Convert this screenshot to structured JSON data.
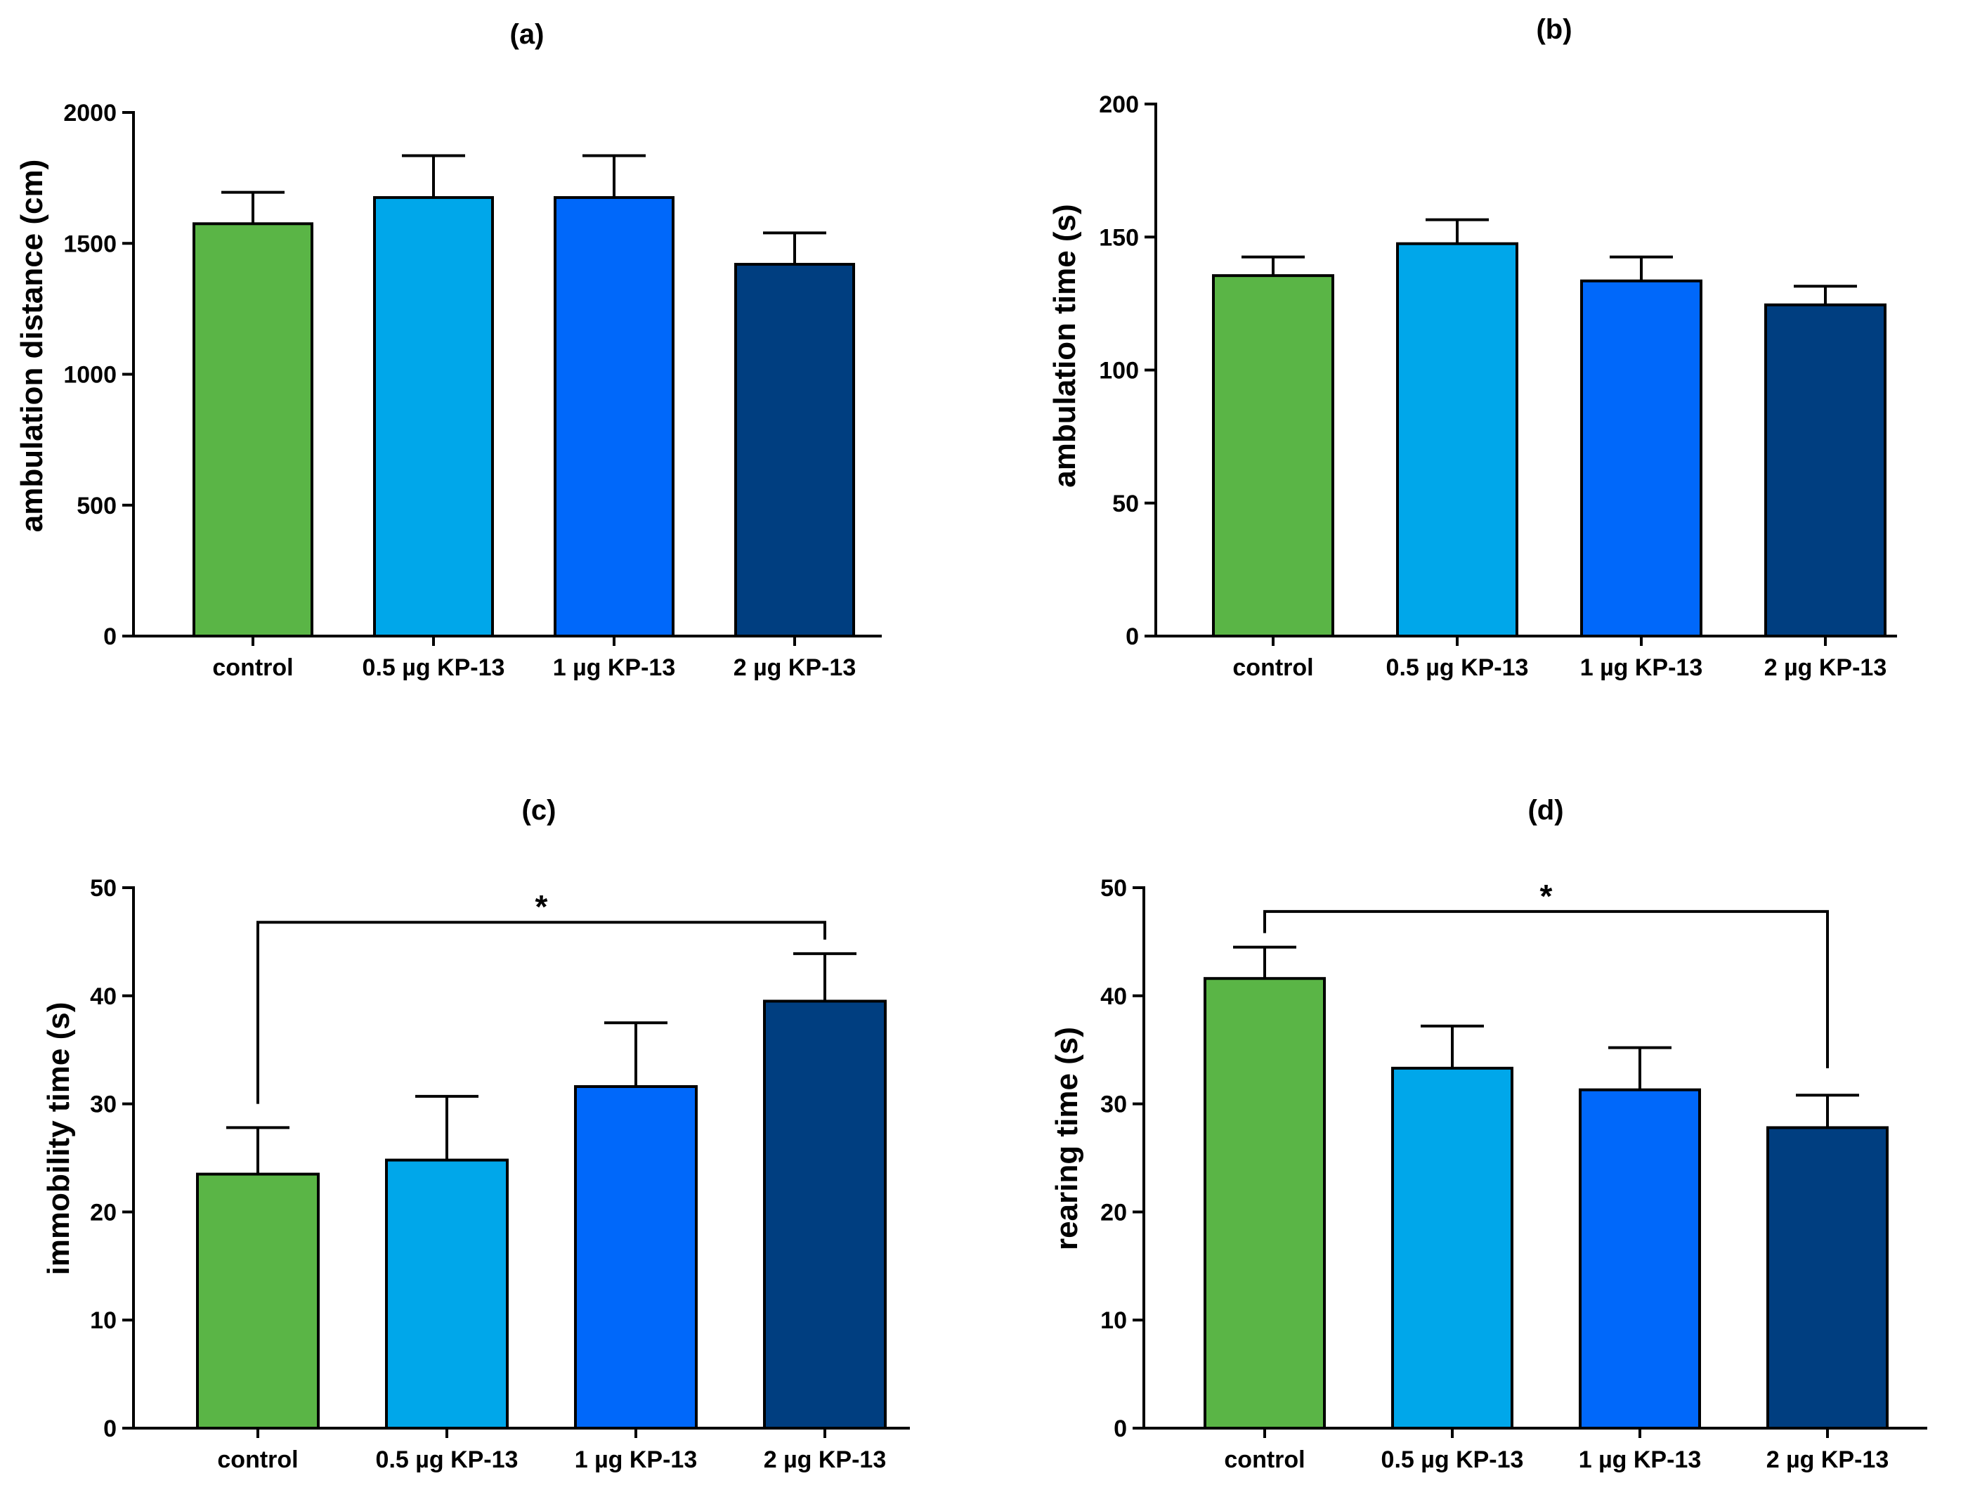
{
  "palette": [
    "#5ab546",
    "#00a7ea",
    "#0068fa",
    "#003e80"
  ],
  "chart_data": [
    {
      "type": "bar",
      "title": "(a)",
      "ylabel": "ambulation distance (cm)",
      "xlabel": "",
      "categories": [
        "control",
        "0.5 µg KP-13",
        "1 µg KP-13",
        "2 µg KP-13"
      ],
      "values": [
        1575,
        1675,
        1675,
        1420
      ],
      "errors": [
        120,
        160,
        160,
        120
      ],
      "ylim": [
        0,
        2000
      ],
      "yticks": [
        0,
        500,
        1000,
        1500,
        2000
      ],
      "ytick_labels": [
        "0",
        "500",
        "1000",
        "1500",
        "2000"
      ],
      "significance": []
    },
    {
      "type": "bar",
      "title": "(b)",
      "ylabel": "ambulation time (s)",
      "xlabel": "",
      "categories": [
        "control",
        "0.5 µg KP-13",
        "1 µg KP-13",
        "2 µg KP-13"
      ],
      "values": [
        135.5,
        147.5,
        133.5,
        124.5
      ],
      "errors": [
        7,
        9,
        9,
        7
      ],
      "ylim": [
        0,
        200
      ],
      "yticks": [
        0,
        50,
        100,
        150,
        200
      ],
      "ytick_labels": [
        "0",
        "50",
        "100",
        "150",
        "200"
      ],
      "significance": []
    },
    {
      "type": "bar",
      "title": "(c)",
      "ylabel": "immobility time (s)",
      "xlabel": "",
      "categories": [
        "control",
        "0.5 µg KP-13",
        "1 µg KP-13",
        "2 µg KP-13"
      ],
      "values": [
        23.5,
        24.8,
        31.6,
        39.5
      ],
      "errors": [
        4.3,
        5.9,
        5.9,
        4.4
      ],
      "ylim": [
        0,
        50
      ],
      "yticks": [
        0,
        10,
        20,
        30,
        40,
        50
      ],
      "ytick_labels": [
        "0",
        "10",
        "20",
        "30",
        "40",
        "50"
      ],
      "significance": [
        {
          "from": 0,
          "to": 3,
          "level": 46.8,
          "label": "*",
          "from_drop": 30.0,
          "to_drop": 45.2
        }
      ]
    },
    {
      "type": "bar",
      "title": "(d)",
      "ylabel": "rearing time (s)",
      "xlabel": "",
      "categories": [
        "control",
        "0.5 µg KP-13",
        "1 µg KP-13",
        "2 µg KP-13"
      ],
      "values": [
        41.6,
        33.3,
        31.3,
        27.8
      ],
      "errors": [
        2.9,
        3.9,
        3.9,
        3.0
      ],
      "ylim": [
        0,
        50
      ],
      "yticks": [
        0,
        10,
        20,
        30,
        40,
        50
      ],
      "ytick_labels": [
        "0",
        "10",
        "20",
        "30",
        "40",
        "50"
      ],
      "significance": [
        {
          "from": 0,
          "to": 3,
          "level": 47.8,
          "label": "*",
          "from_drop": 45.8,
          "to_drop": 33.3
        }
      ]
    }
  ]
}
